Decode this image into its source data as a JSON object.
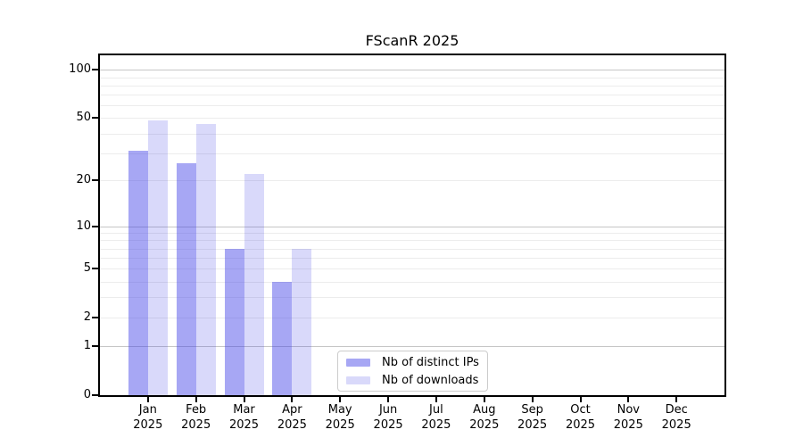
{
  "chart_data": {
    "type": "bar",
    "title": "FScanR 2025",
    "x": {
      "categories": [
        "Jan",
        "Feb",
        "Mar",
        "Apr",
        "May",
        "Jun",
        "Jul",
        "Aug",
        "Sep",
        "Oct",
        "Nov",
        "Dec"
      ],
      "sublabel": "2025"
    },
    "series": [
      {
        "name": "Nb of distinct IPs",
        "color": "rgba(64,64,232,0.46)",
        "color_hex": "#a7a7f3",
        "values": [
          31,
          26,
          7,
          4,
          0,
          0,
          0,
          0,
          0,
          0,
          0,
          0
        ]
      },
      {
        "name": "Nb of downloads",
        "color": "rgba(64,64,232,0.20)",
        "color_hex": "#d9d9fa",
        "values": [
          48,
          46,
          22,
          7,
          0,
          0,
          0,
          0,
          0,
          0,
          0,
          0
        ]
      }
    ],
    "y_axis": {
      "scale": "log1p",
      "ylim": [
        0,
        123
      ],
      "labeled_ticks": [
        0,
        1,
        2,
        5,
        10,
        20,
        50,
        100
      ],
      "major_gridlines": [
        1,
        10,
        100
      ],
      "minor_gridlines": [
        2,
        3,
        4,
        5,
        6,
        7,
        8,
        9,
        20,
        30,
        40,
        50,
        60,
        70,
        80,
        90
      ]
    },
    "legend_position": "bottom-center",
    "grid": true
  },
  "colors": {
    "background": "#ffffff",
    "axis": "#000000",
    "text": "#000000",
    "major_grid": "#c6c6c6",
    "minor_grid": "#ececec",
    "legend_border": "#cccccc",
    "legend_bg": "#ffffff"
  }
}
